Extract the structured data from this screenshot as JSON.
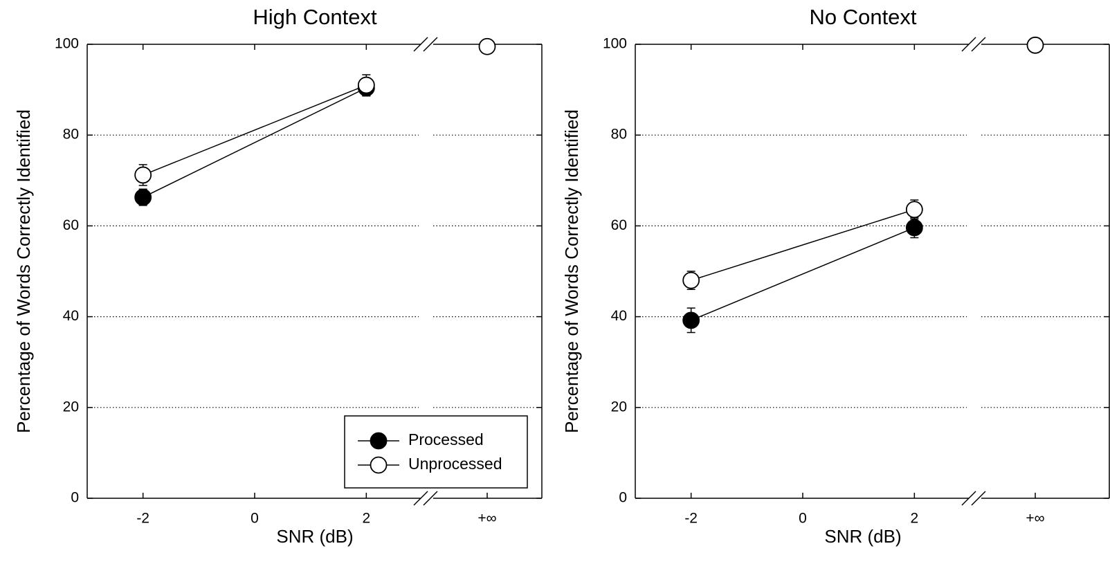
{
  "chart_data": [
    {
      "type": "line",
      "title": "High Context",
      "x_label": "SNR (dB)",
      "y_label": "Percentage of Words Correctly Identified",
      "xlim": [
        -3,
        3
      ],
      "xticks": [
        -2,
        0,
        2
      ],
      "inf_tick": "+∞",
      "ylim": [
        0,
        100
      ],
      "yticks": [
        0,
        20,
        40,
        60,
        80,
        100
      ],
      "grid": true,
      "axis_break": true,
      "legend": "lower right",
      "series": [
        {
          "name": "Processed",
          "color": "#000000",
          "x": [
            -2,
            2
          ],
          "values": [
            66.3,
            90.4
          ],
          "errors": [
            1.8,
            1.8
          ]
        },
        {
          "name": "Unprocessed",
          "color": "#ffffff",
          "x": [
            -2,
            2
          ],
          "values": [
            71.2,
            91.0
          ],
          "errors": [
            2.3,
            2.3
          ],
          "inf_value": 99.5
        }
      ]
    },
    {
      "type": "line",
      "title": "No Context",
      "x_label": "SNR (dB)",
      "y_label": "Percentage of Words Correctly Identified",
      "xlim": [
        -3,
        3
      ],
      "xticks": [
        -2,
        0,
        2
      ],
      "inf_tick": "+∞",
      "ylim": [
        0,
        100
      ],
      "yticks": [
        0,
        20,
        40,
        60,
        80,
        100
      ],
      "grid": true,
      "axis_break": true,
      "legend": "none",
      "series": [
        {
          "name": "Processed",
          "color": "#000000",
          "x": [
            -2,
            2
          ],
          "values": [
            39.2,
            59.6
          ],
          "errors": [
            2.7,
            2.2
          ]
        },
        {
          "name": "Unprocessed",
          "color": "#ffffff",
          "x": [
            -2,
            2
          ],
          "values": [
            48.0,
            63.6
          ],
          "errors": [
            2.0,
            2.1
          ],
          "inf_value": 99.8
        }
      ]
    }
  ]
}
